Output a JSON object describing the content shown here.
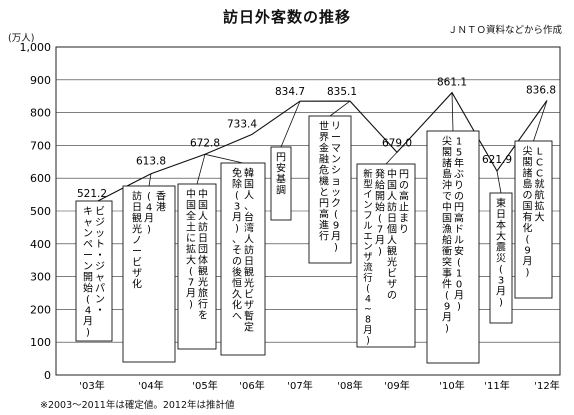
{
  "chart_data": {
    "type": "line",
    "title": "訪日外客数の推移",
    "source": "ＪＮＴＯ資料などから作成",
    "note": "※2003～2011年は確定値。2012年は推計値",
    "y_unit": "(万人)",
    "categories": [
      "'03年",
      "'04年",
      "'05年",
      "'06年",
      "'07年",
      "'08年",
      "'09年",
      "'10年",
      "'11年",
      "'12年"
    ],
    "series": [
      {
        "values": [
          521.2,
          613.8,
          672.8,
          733.4,
          834.7,
          835.1,
          679.0,
          861.1,
          621.9,
          836.8
        ]
      }
    ],
    "data_labels": [
      "521.2",
      "613.8",
      "672.8",
      "733.4",
      "834.7",
      "835.1",
      "679.0",
      "861.1",
      "621.9",
      "836.8"
    ],
    "ylim": [
      0,
      1000
    ],
    "y_ticks": [
      0,
      100,
      200,
      300,
      400,
      500,
      600,
      700,
      800,
      900,
      1000
    ],
    "y_tick_labels": [
      "0",
      "100",
      "200",
      "300",
      "400",
      "500",
      "600",
      "700",
      "800",
      "900",
      "1,000"
    ],
    "grid": "horizontal",
    "annotations": [
      {
        "lines": [
          "ビジット・ジャパン・",
          "キャンペーン開始(4月)"
        ]
      },
      {
        "lines": [
          "香港",
          "(4月)",
          "訪日観光ノービザ化"
        ]
      },
      {
        "lines": [
          "中国人訪日団体観光旅行を",
          "中国全土に拡大(7月)"
        ]
      },
      {
        "lines": [
          "韓国人、台湾人訪日観光ビザ暫定",
          "免除(3月)、その後恒久化へ"
        ]
      },
      {
        "lines": [
          "円安基調"
        ]
      },
      {
        "lines": [
          "リーマンショック(9月)",
          "世界金融危機と円高進行"
        ]
      },
      {
        "lines": [
          "円の高止まり",
          "中国人訪日個人観光ビザの",
          "発給開始(7月)",
          "新型インフルエンザ流行(4~8月)"
        ]
      },
      {
        "lines": [
          "15年ぶりの円高ドル安(10月)",
          "尖閣諸島沖で中国漁船衝突事件(9月)"
        ]
      },
      {
        "lines": [
          "東日本大震災(3月)"
        ]
      },
      {
        "lines": [
          "LCC就航拡大",
          "尖閣諸島の国有化(9月)"
        ]
      }
    ]
  }
}
